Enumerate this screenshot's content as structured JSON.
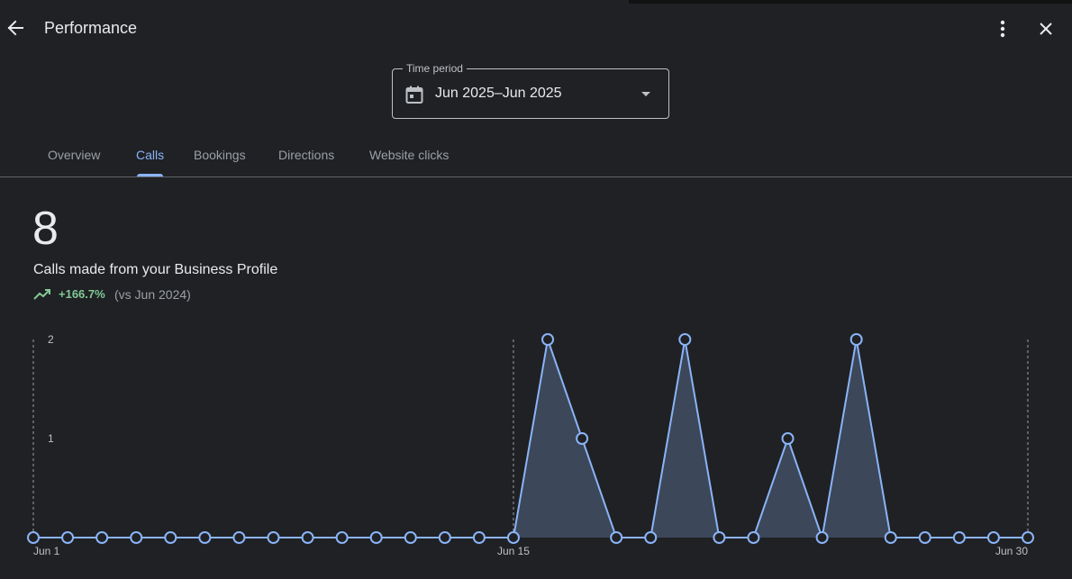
{
  "header": {
    "title": "Performance",
    "back_icon": "arrow-back-icon",
    "more_icon": "more-vert-icon",
    "close_icon": "close-icon"
  },
  "time_period": {
    "label": "Time period",
    "value": "Jun 2025–Jun 2025",
    "icon": "calendar-icon"
  },
  "tabs": [
    {
      "label": "Overview",
      "active": false
    },
    {
      "label": "Calls",
      "active": true
    },
    {
      "label": "Bookings",
      "active": false
    },
    {
      "label": "Directions",
      "active": false
    },
    {
      "label": "Website clicks",
      "active": false
    }
  ],
  "summary": {
    "value": "8",
    "label": "Calls made from your Business Profile",
    "change": "+166.7%",
    "comparison": "(vs Jun 2024)",
    "trend_icon": "trending-up-icon"
  },
  "colors": {
    "background": "#202124",
    "accent": "#8ab4f8",
    "positive": "#81c995",
    "area_fill": "#3c4759"
  },
  "chart_data": {
    "type": "area",
    "x": [
      1,
      2,
      3,
      4,
      5,
      6,
      7,
      8,
      9,
      10,
      11,
      12,
      13,
      14,
      15,
      16,
      17,
      18,
      19,
      20,
      21,
      22,
      23,
      24,
      25,
      26,
      27,
      28,
      29,
      30
    ],
    "values": [
      0,
      0,
      0,
      0,
      0,
      0,
      0,
      0,
      0,
      0,
      0,
      0,
      0,
      0,
      0,
      2,
      1,
      0,
      0,
      2,
      0,
      0,
      1,
      0,
      2,
      0,
      0,
      0,
      0,
      0
    ],
    "x_tick_labels": [
      {
        "day": 1,
        "label": "Jun 1"
      },
      {
        "day": 15,
        "label": "Jun 15"
      },
      {
        "day": 30,
        "label": "Jun 30"
      }
    ],
    "y_ticks": [
      1,
      2
    ],
    "ylim": [
      0,
      2
    ]
  }
}
